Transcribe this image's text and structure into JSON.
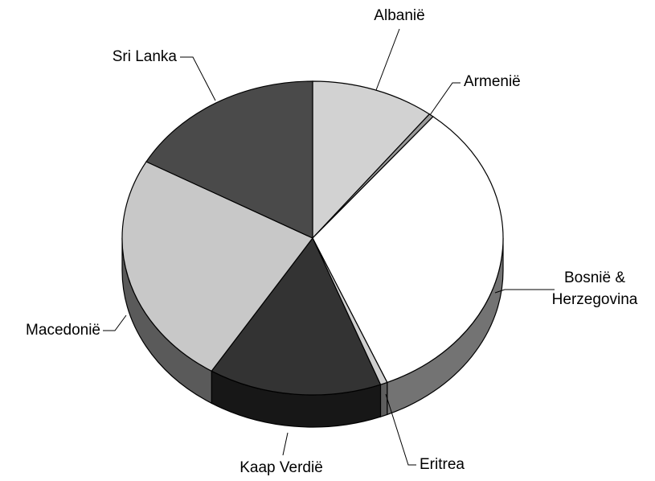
{
  "chart_data": {
    "type": "pie3d",
    "categories": [
      "Albanië",
      "Armenië",
      "Bosnië & Herzegovina",
      "Eritrea",
      "Kaap Verdië",
      "Macedonië",
      "Sri Lanka"
    ],
    "values": [
      10.5,
      0.4,
      32.7,
      0.6,
      14.7,
      24.2,
      16.9
    ],
    "colors": [
      "#d2d2d2",
      "#9a9a9a",
      "#ffffff",
      "#cfcfcf",
      "#333333",
      "#c8c8c8",
      "#4a4a4a"
    ]
  }
}
